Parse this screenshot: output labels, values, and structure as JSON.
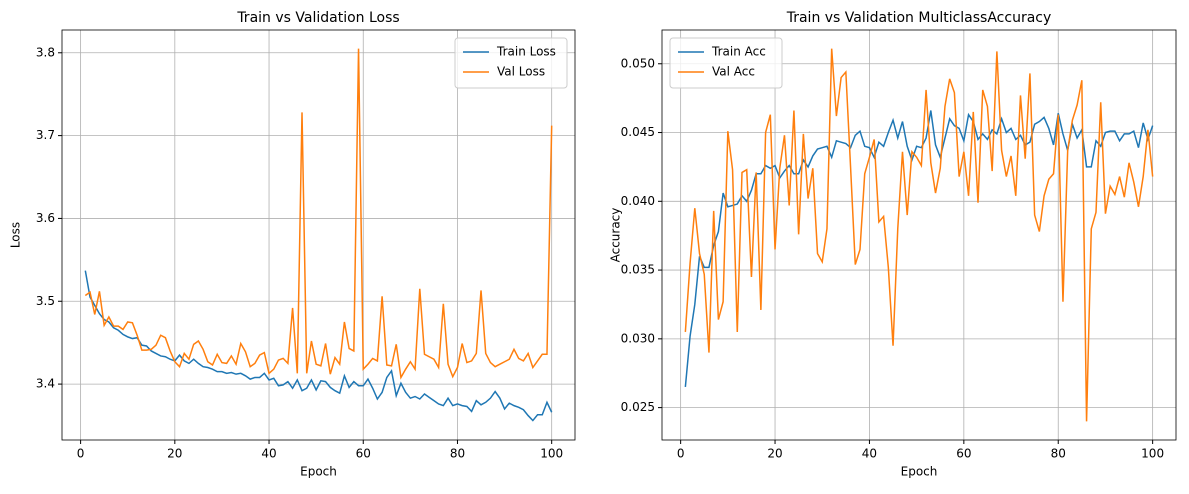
{
  "chart_data": [
    {
      "type": "line",
      "title": "Train vs Validation Loss",
      "xlabel": "Epoch",
      "ylabel": "Loss",
      "x": [
        1,
        2,
        3,
        4,
        5,
        6,
        7,
        8,
        9,
        10,
        11,
        12,
        13,
        14,
        15,
        16,
        17,
        18,
        19,
        20,
        21,
        22,
        23,
        24,
        25,
        26,
        27,
        28,
        29,
        30,
        31,
        32,
        33,
        34,
        35,
        36,
        37,
        38,
        39,
        40,
        41,
        42,
        43,
        44,
        45,
        46,
        47,
        48,
        49,
        50,
        51,
        52,
        53,
        54,
        55,
        56,
        57,
        58,
        59,
        60,
        61,
        62,
        63,
        64,
        65,
        66,
        67,
        68,
        69,
        70,
        71,
        72,
        73,
        74,
        75,
        76,
        77,
        78,
        79,
        80,
        81,
        82,
        83,
        84,
        85,
        86,
        87,
        88,
        89,
        90,
        91,
        92,
        93,
        94,
        95,
        96,
        97,
        98,
        99,
        100
      ],
      "series": [
        {
          "name": "Train Loss",
          "color": "#1f77b4",
          "values": [
            3.537,
            3.505,
            3.495,
            3.485,
            3.478,
            3.475,
            3.468,
            3.465,
            3.46,
            3.457,
            3.455,
            3.456,
            3.447,
            3.446,
            3.44,
            3.437,
            3.434,
            3.433,
            3.43,
            3.428,
            3.435,
            3.428,
            3.425,
            3.43,
            3.425,
            3.421,
            3.42,
            3.418,
            3.415,
            3.415,
            3.413,
            3.414,
            3.412,
            3.413,
            3.41,
            3.406,
            3.408,
            3.408,
            3.413,
            3.405,
            3.407,
            3.398,
            3.399,
            3.403,
            3.395,
            3.405,
            3.392,
            3.395,
            3.405,
            3.393,
            3.404,
            3.403,
            3.396,
            3.392,
            3.389,
            3.41,
            3.396,
            3.403,
            3.398,
            3.398,
            3.406,
            3.395,
            3.382,
            3.39,
            3.408,
            3.416,
            3.386,
            3.401,
            3.39,
            3.383,
            3.385,
            3.382,
            3.388,
            3.384,
            3.38,
            3.376,
            3.374,
            3.383,
            3.374,
            3.376,
            3.374,
            3.373,
            3.367,
            3.38,
            3.375,
            3.378,
            3.383,
            3.391,
            3.383,
            3.37,
            3.377,
            3.374,
            3.372,
            3.369,
            3.362,
            3.356,
            3.363,
            3.363,
            3.378,
            3.366
          ]
        },
        {
          "name": "Val Loss",
          "color": "#ff7f0e",
          "values": [
            3.507,
            3.511,
            3.484,
            3.512,
            3.471,
            3.481,
            3.47,
            3.47,
            3.466,
            3.475,
            3.474,
            3.459,
            3.441,
            3.441,
            3.442,
            3.447,
            3.459,
            3.456,
            3.44,
            3.427,
            3.421,
            3.437,
            3.43,
            3.448,
            3.452,
            3.442,
            3.427,
            3.423,
            3.436,
            3.426,
            3.425,
            3.434,
            3.424,
            3.449,
            3.439,
            3.421,
            3.425,
            3.435,
            3.438,
            3.413,
            3.418,
            3.429,
            3.431,
            3.425,
            3.492,
            3.413,
            3.728,
            3.413,
            3.452,
            3.424,
            3.422,
            3.449,
            3.412,
            3.432,
            3.424,
            3.475,
            3.443,
            3.44,
            3.805,
            3.418,
            3.424,
            3.431,
            3.428,
            3.506,
            3.423,
            3.422,
            3.448,
            3.408,
            3.418,
            3.427,
            3.418,
            3.515,
            3.436,
            3.433,
            3.43,
            3.42,
            3.497,
            3.424,
            3.409,
            3.42,
            3.449,
            3.426,
            3.428,
            3.437,
            3.513,
            3.437,
            3.426,
            3.421,
            3.424,
            3.427,
            3.43,
            3.442,
            3.431,
            3.428,
            3.437,
            3.42,
            3.428,
            3.436,
            3.436,
            3.712
          ]
        }
      ],
      "xlim": [
        -3.95,
        104.95
      ],
      "xticks": [
        0,
        20,
        40,
        60,
        80,
        100
      ],
      "ylim": [
        3.3325,
        3.8275
      ],
      "yticks": [
        3.4,
        3.5,
        3.6,
        3.7,
        3.8
      ],
      "grid": true,
      "legend": "upper right"
    },
    {
      "type": "line",
      "title": "Train vs Validation MulticlassAccuracy",
      "xlabel": "Epoch",
      "ylabel": "Accuracy",
      "x": [
        1,
        2,
        3,
        4,
        5,
        6,
        7,
        8,
        9,
        10,
        11,
        12,
        13,
        14,
        15,
        16,
        17,
        18,
        19,
        20,
        21,
        22,
        23,
        24,
        25,
        26,
        27,
        28,
        29,
        30,
        31,
        32,
        33,
        34,
        35,
        36,
        37,
        38,
        39,
        40,
        41,
        42,
        43,
        44,
        45,
        46,
        47,
        48,
        49,
        50,
        51,
        52,
        53,
        54,
        55,
        56,
        57,
        58,
        59,
        60,
        61,
        62,
        63,
        64,
        65,
        66,
        67,
        68,
        69,
        70,
        71,
        72,
        73,
        74,
        75,
        76,
        77,
        78,
        79,
        80,
        81,
        82,
        83,
        84,
        85,
        86,
        87,
        88,
        89,
        90,
        91,
        92,
        93,
        94,
        95,
        96,
        97,
        98,
        99,
        100
      ],
      "series": [
        {
          "name": "Train Acc",
          "color": "#1f77b4",
          "values": [
            0.0265,
            0.0302,
            0.0325,
            0.036,
            0.0352,
            0.0352,
            0.0368,
            0.0378,
            0.0406,
            0.0396,
            0.0397,
            0.0398,
            0.0404,
            0.04,
            0.0408,
            0.042,
            0.042,
            0.0426,
            0.0424,
            0.0426,
            0.0417,
            0.0422,
            0.0426,
            0.042,
            0.042,
            0.043,
            0.0425,
            0.0433,
            0.0438,
            0.0439,
            0.044,
            0.0432,
            0.0444,
            0.0443,
            0.0442,
            0.0439,
            0.0448,
            0.0451,
            0.044,
            0.0439,
            0.0432,
            0.0443,
            0.044,
            0.045,
            0.0459,
            0.0446,
            0.0458,
            0.044,
            0.043,
            0.044,
            0.0439,
            0.0446,
            0.0466,
            0.0441,
            0.0432,
            0.0446,
            0.046,
            0.0455,
            0.0453,
            0.0444,
            0.0463,
            0.0458,
            0.0445,
            0.0449,
            0.0445,
            0.0452,
            0.0449,
            0.046,
            0.045,
            0.0453,
            0.0445,
            0.0448,
            0.0441,
            0.0443,
            0.0456,
            0.0458,
            0.0461,
            0.0453,
            0.0441,
            0.0464,
            0.0449,
            0.0437,
            0.0456,
            0.0446,
            0.0452,
            0.0425,
            0.0425,
            0.0444,
            0.044,
            0.045,
            0.0451,
            0.0451,
            0.0444,
            0.0449,
            0.0449,
            0.0451,
            0.0439,
            0.0457,
            0.0445,
            0.0455
          ]
        },
        {
          "name": "Val Acc",
          "color": "#ff7f0e",
          "values": [
            0.0305,
            0.0355,
            0.0395,
            0.0362,
            0.0347,
            0.029,
            0.0393,
            0.0314,
            0.0327,
            0.0451,
            0.0423,
            0.0305,
            0.0421,
            0.0423,
            0.0345,
            0.0421,
            0.0321,
            0.045,
            0.0463,
            0.0365,
            0.0424,
            0.0448,
            0.0397,
            0.0466,
            0.0376,
            0.0449,
            0.0402,
            0.0424,
            0.0362,
            0.0356,
            0.038,
            0.0511,
            0.0462,
            0.049,
            0.0494,
            0.0425,
            0.0354,
            0.0365,
            0.042,
            0.0432,
            0.0445,
            0.0385,
            0.0389,
            0.0352,
            0.0295,
            0.038,
            0.0436,
            0.039,
            0.0436,
            0.0432,
            0.0426,
            0.0481,
            0.0428,
            0.0406,
            0.0424,
            0.0469,
            0.0489,
            0.0479,
            0.0418,
            0.0436,
            0.0404,
            0.0465,
            0.0399,
            0.0481,
            0.0469,
            0.0422,
            0.0509,
            0.0437,
            0.0418,
            0.0433,
            0.0404,
            0.0477,
            0.0431,
            0.0493,
            0.039,
            0.0378,
            0.0404,
            0.0416,
            0.042,
            0.0463,
            0.0327,
            0.0437,
            0.0459,
            0.047,
            0.0488,
            0.024,
            0.038,
            0.0392,
            0.0472,
            0.0391,
            0.0411,
            0.0405,
            0.0418,
            0.0403,
            0.0428,
            0.0414,
            0.0396,
            0.0418,
            0.0452,
            0.0418
          ]
        }
      ],
      "xlim": [
        -3.95,
        104.95
      ],
      "xticks": [
        0,
        20,
        40,
        60,
        80,
        100
      ],
      "ylim": [
        0.022645,
        0.052455
      ],
      "yticks": [
        0.025,
        {
          "value": 0.03,
          "label": "0.030"
        },
        0.035,
        {
          "value": 0.04,
          "label": "0.040"
        },
        0.045,
        {
          "value": 0.05,
          "label": "0.050"
        }
      ],
      "grid": true,
      "legend": "upper left"
    }
  ]
}
